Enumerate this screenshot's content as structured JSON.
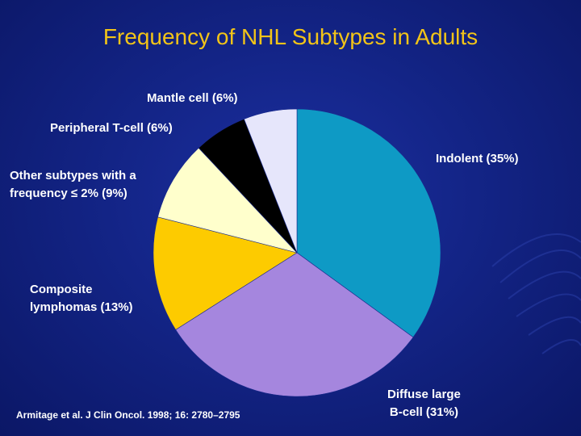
{
  "title": "Frequency of NHL Subtypes in Adults",
  "citation": "Armitage et al. J Clin Oncol. 1998; 16: 2780–2795",
  "chart_data": {
    "type": "pie",
    "title": "Frequency of NHL Subtypes in Adults",
    "start_angle": "12 o'clock",
    "direction": "clockwise",
    "slices": [
      {
        "label_lines": [
          "Indolent (35%)"
        ],
        "value": 35,
        "color": "#0e9ac5"
      },
      {
        "label_lines": [
          "Diffuse large",
          "B-cell (31%)"
        ],
        "value": 31,
        "color": "#a586de"
      },
      {
        "label_lines": [
          "Composite",
          "lymphomas (13%)"
        ],
        "value": 13,
        "color": "#fdcb00"
      },
      {
        "label_lines": [
          "Other subtypes with a",
          "frequency ≤ 2% (9%)"
        ],
        "value": 9,
        "color": "#ffffcc"
      },
      {
        "label_lines": [
          "Peripheral T-cell (6%)"
        ],
        "value": 6,
        "color": "#000000"
      },
      {
        "label_lines": [
          "Mantle cell (6%)"
        ],
        "value": 6,
        "color": "#e6e6fb"
      }
    ]
  }
}
